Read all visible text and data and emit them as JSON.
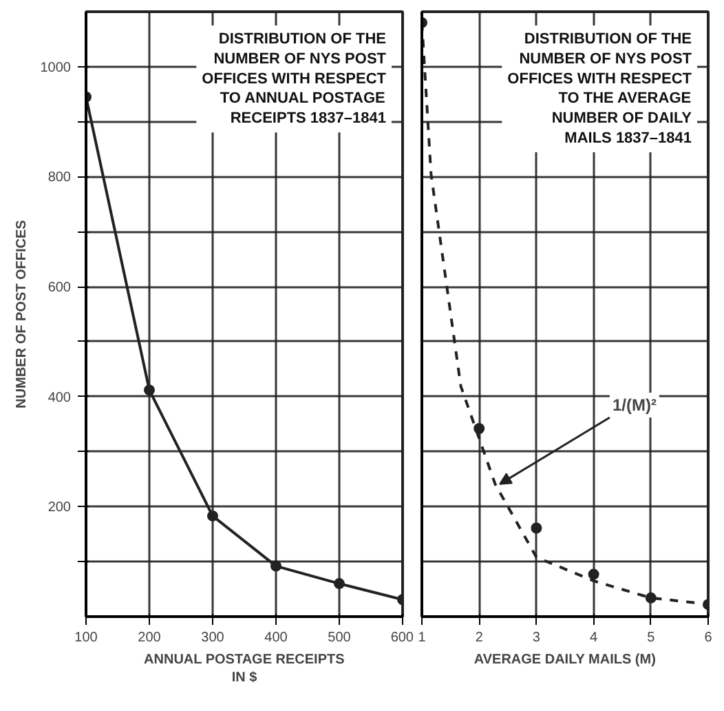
{
  "chart_data": [
    {
      "type": "line",
      "title": "DISTRIBUTION OF THE\nNUMBER OF NYS POST\nOFFICES WITH RESPECT\nTO ANNUAL POSTAGE\nRECEIPTS 1837–1841",
      "xlabel": "ANNUAL POSTAGE RECEIPTS\nIN $",
      "ylabel": "NUMBER OF POST OFFICES",
      "x": [
        100,
        200,
        300,
        400,
        500,
        600
      ],
      "series": [
        {
          "color": "#222222",
          "values": [
            945,
            412,
            183,
            92,
            60,
            31
          ],
          "marker": "circle",
          "line_style": "solid"
        }
      ],
      "xlim": [
        100,
        600
      ],
      "ylim": [
        0,
        1100
      ],
      "xticks": [
        100,
        200,
        300,
        400,
        500,
        600
      ],
      "yticks": [
        {
          "value": 100,
          "label": null
        },
        200,
        {
          "value": 300,
          "label": null
        },
        400,
        {
          "value": 500,
          "label": null
        },
        600,
        {
          "value": 700,
          "label": null
        },
        800,
        {
          "value": 900,
          "label": null
        },
        1000
      ],
      "grid": true
    },
    {
      "type": "scatter",
      "title": "DISTRIBUTION OF THE\nNUMBER OF NYS POST\nOFFICES WITH RESPECT\nTO THE AVERAGE\nNUMBER OF DAILY\nMAILS 1837–1841",
      "xlabel": "AVERAGE DAILY MAILS (M)",
      "x": [
        1,
        2,
        3,
        4,
        5,
        6
      ],
      "series": [
        {
          "color": "#222222",
          "values": [
            1080,
            342,
            161,
            77,
            34,
            22
          ],
          "marker": "circle"
        },
        {
          "type": "line",
          "color": "#222222",
          "x": [
            1,
            1.16,
            1.68,
            2.28,
            3.0,
            4.0,
            5.0,
            5.88
          ],
          "values": [
            1080,
            805,
            419,
            241,
            108,
            65,
            34,
            24
          ],
          "marker": "none",
          "line_style": "dashed"
        }
      ],
      "annotations": [
        {
          "text": "1/(M)²",
          "x": 2.28,
          "y": 241
        }
      ],
      "xlim": [
        1,
        6
      ],
      "ylim": [
        0,
        1100
      ],
      "xticks": [
        1,
        2,
        3,
        4,
        5,
        6
      ],
      "yticks": [
        100,
        200,
        300,
        400,
        500,
        600,
        700,
        800,
        900,
        1000
      ],
      "tick_labels": "x",
      "grid": true
    }
  ]
}
